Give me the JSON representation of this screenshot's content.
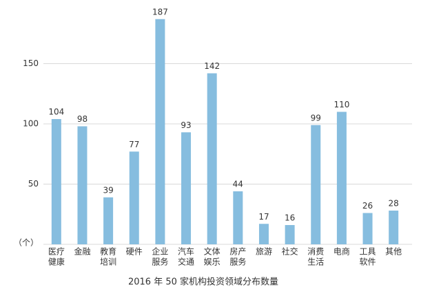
{
  "chart_data": {
    "type": "bar",
    "title": "2016 年 50 家机构投资领域分布数量",
    "y_unit": "（个）",
    "categories": [
      [
        "医疗",
        "健康"
      ],
      [
        "金融"
      ],
      [
        "教育",
        "培训"
      ],
      [
        "硬件"
      ],
      [
        "企业",
        "服务"
      ],
      [
        "汽车",
        "交通"
      ],
      [
        "文体",
        "娱乐"
      ],
      [
        "房产",
        "服务"
      ],
      [
        "旅游"
      ],
      [
        "社交"
      ],
      [
        "消费",
        "生活"
      ],
      [
        "电商"
      ],
      [
        "工具",
        "软件"
      ],
      [
        "其他"
      ]
    ],
    "values": [
      104,
      98,
      39,
      77,
      187,
      93,
      142,
      44,
      17,
      16,
      99,
      110,
      26,
      28
    ],
    "color": "#86bddf",
    "ylim": [
      0,
      200
    ],
    "yticks": [
      50,
      100,
      150
    ],
    "grid": true
  }
}
